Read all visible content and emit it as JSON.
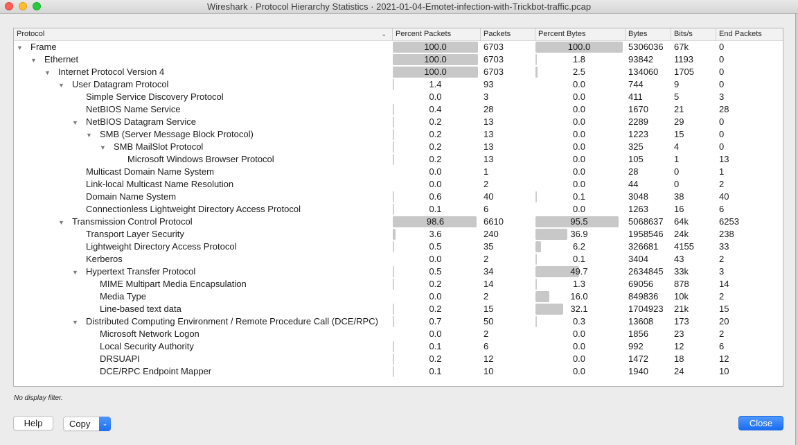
{
  "window": {
    "title": "Wireshark · Protocol Hierarchy Statistics · 2021-01-04-Emotet-infection-with-Trickbot-traffic.pcap"
  },
  "table": {
    "columns": [
      "Protocol",
      "Percent Packets",
      "Packets",
      "Percent Bytes",
      "Bytes",
      "Bits/s",
      "End Packets"
    ],
    "rows": [
      {
        "level": 0,
        "expanded": true,
        "protocol": "Frame",
        "pct_packets": "100.0",
        "packets": "6703",
        "pct_bytes": "100.0",
        "bytes": "5306036",
        "bits_s": "67k",
        "end_packets": "0"
      },
      {
        "level": 1,
        "expanded": true,
        "protocol": "Ethernet",
        "pct_packets": "100.0",
        "packets": "6703",
        "pct_bytes": "1.8",
        "bytes": "93842",
        "bits_s": "1193",
        "end_packets": "0"
      },
      {
        "level": 2,
        "expanded": true,
        "protocol": "Internet Protocol Version 4",
        "pct_packets": "100.0",
        "packets": "6703",
        "pct_bytes": "2.5",
        "bytes": "134060",
        "bits_s": "1705",
        "end_packets": "0"
      },
      {
        "level": 3,
        "expanded": true,
        "protocol": "User Datagram Protocol",
        "pct_packets": "1.4",
        "packets": "93",
        "pct_bytes": "0.0",
        "bytes": "744",
        "bits_s": "9",
        "end_packets": "0"
      },
      {
        "level": 4,
        "expanded": false,
        "protocol": "Simple Service Discovery Protocol",
        "pct_packets": "0.0",
        "packets": "3",
        "pct_bytes": "0.0",
        "bytes": "411",
        "bits_s": "5",
        "end_packets": "3"
      },
      {
        "level": 4,
        "expanded": false,
        "protocol": "NetBIOS Name Service",
        "pct_packets": "0.4",
        "packets": "28",
        "pct_bytes": "0.0",
        "bytes": "1670",
        "bits_s": "21",
        "end_packets": "28"
      },
      {
        "level": 4,
        "expanded": true,
        "protocol": "NetBIOS Datagram Service",
        "pct_packets": "0.2",
        "packets": "13",
        "pct_bytes": "0.0",
        "bytes": "2289",
        "bits_s": "29",
        "end_packets": "0"
      },
      {
        "level": 5,
        "expanded": true,
        "protocol": "SMB (Server Message Block Protocol)",
        "pct_packets": "0.2",
        "packets": "13",
        "pct_bytes": "0.0",
        "bytes": "1223",
        "bits_s": "15",
        "end_packets": "0"
      },
      {
        "level": 6,
        "expanded": true,
        "protocol": "SMB MailSlot Protocol",
        "pct_packets": "0.2",
        "packets": "13",
        "pct_bytes": "0.0",
        "bytes": "325",
        "bits_s": "4",
        "end_packets": "0"
      },
      {
        "level": 7,
        "expanded": false,
        "protocol": "Microsoft Windows Browser Protocol",
        "pct_packets": "0.2",
        "packets": "13",
        "pct_bytes": "0.0",
        "bytes": "105",
        "bits_s": "1",
        "end_packets": "13"
      },
      {
        "level": 4,
        "expanded": false,
        "protocol": "Multicast Domain Name System",
        "pct_packets": "0.0",
        "packets": "1",
        "pct_bytes": "0.0",
        "bytes": "28",
        "bits_s": "0",
        "end_packets": "1"
      },
      {
        "level": 4,
        "expanded": false,
        "protocol": "Link-local Multicast Name Resolution",
        "pct_packets": "0.0",
        "packets": "2",
        "pct_bytes": "0.0",
        "bytes": "44",
        "bits_s": "0",
        "end_packets": "2"
      },
      {
        "level": 4,
        "expanded": false,
        "protocol": "Domain Name System",
        "pct_packets": "0.6",
        "packets": "40",
        "pct_bytes": "0.1",
        "bytes": "3048",
        "bits_s": "38",
        "end_packets": "40"
      },
      {
        "level": 4,
        "expanded": false,
        "protocol": "Connectionless Lightweight Directory Access Protocol",
        "pct_packets": "0.1",
        "packets": "6",
        "pct_bytes": "0.0",
        "bytes": "1263",
        "bits_s": "16",
        "end_packets": "6"
      },
      {
        "level": 3,
        "expanded": true,
        "protocol": "Transmission Control Protocol",
        "pct_packets": "98.6",
        "packets": "6610",
        "pct_bytes": "95.5",
        "bytes": "5068637",
        "bits_s": "64k",
        "end_packets": "6253"
      },
      {
        "level": 4,
        "expanded": false,
        "protocol": "Transport Layer Security",
        "pct_packets": "3.6",
        "packets": "240",
        "pct_bytes": "36.9",
        "bytes": "1958546",
        "bits_s": "24k",
        "end_packets": "238"
      },
      {
        "level": 4,
        "expanded": false,
        "protocol": "Lightweight Directory Access Protocol",
        "pct_packets": "0.5",
        "packets": "35",
        "pct_bytes": "6.2",
        "bytes": "326681",
        "bits_s": "4155",
        "end_packets": "33"
      },
      {
        "level": 4,
        "expanded": false,
        "protocol": "Kerberos",
        "pct_packets": "0.0",
        "packets": "2",
        "pct_bytes": "0.1",
        "bytes": "3404",
        "bits_s": "43",
        "end_packets": "2"
      },
      {
        "level": 4,
        "expanded": true,
        "protocol": "Hypertext Transfer Protocol",
        "pct_packets": "0.5",
        "packets": "34",
        "pct_bytes": "49.7",
        "bytes": "2634845",
        "bits_s": "33k",
        "end_packets": "3"
      },
      {
        "level": 5,
        "expanded": false,
        "protocol": "MIME Multipart Media Encapsulation",
        "pct_packets": "0.2",
        "packets": "14",
        "pct_bytes": "1.3",
        "bytes": "69056",
        "bits_s": "878",
        "end_packets": "14"
      },
      {
        "level": 5,
        "expanded": false,
        "protocol": "Media Type",
        "pct_packets": "0.0",
        "packets": "2",
        "pct_bytes": "16.0",
        "bytes": "849836",
        "bits_s": "10k",
        "end_packets": "2"
      },
      {
        "level": 5,
        "expanded": false,
        "protocol": "Line-based text data",
        "pct_packets": "0.2",
        "packets": "15",
        "pct_bytes": "32.1",
        "bytes": "1704923",
        "bits_s": "21k",
        "end_packets": "15"
      },
      {
        "level": 4,
        "expanded": true,
        "protocol": "Distributed Computing Environment / Remote Procedure Call (DCE/RPC)",
        "pct_packets": "0.7",
        "packets": "50",
        "pct_bytes": "0.3",
        "bytes": "13608",
        "bits_s": "173",
        "end_packets": "20"
      },
      {
        "level": 5,
        "expanded": false,
        "protocol": "Microsoft Network Logon",
        "pct_packets": "0.0",
        "packets": "2",
        "pct_bytes": "0.0",
        "bytes": "1856",
        "bits_s": "23",
        "end_packets": "2"
      },
      {
        "level": 5,
        "expanded": false,
        "protocol": "Local Security Authority",
        "pct_packets": "0.1",
        "packets": "6",
        "pct_bytes": "0.0",
        "bytes": "992",
        "bits_s": "12",
        "end_packets": "6"
      },
      {
        "level": 5,
        "expanded": false,
        "protocol": "DRSUAPI",
        "pct_packets": "0.2",
        "packets": "12",
        "pct_bytes": "0.0",
        "bytes": "1472",
        "bits_s": "18",
        "end_packets": "12"
      },
      {
        "level": 5,
        "expanded": false,
        "protocol": "DCE/RPC Endpoint Mapper",
        "pct_packets": "0.1",
        "packets": "10",
        "pct_bytes": "0.0",
        "bytes": "1940",
        "bits_s": "24",
        "end_packets": "10"
      }
    ]
  },
  "footer": {
    "filter_note": "No display filter.",
    "help_label": "Help",
    "copy_label": "Copy",
    "close_label": "Close"
  },
  "colors": {
    "bar": "#c8c8c8",
    "accent": "#1a6df2"
  }
}
